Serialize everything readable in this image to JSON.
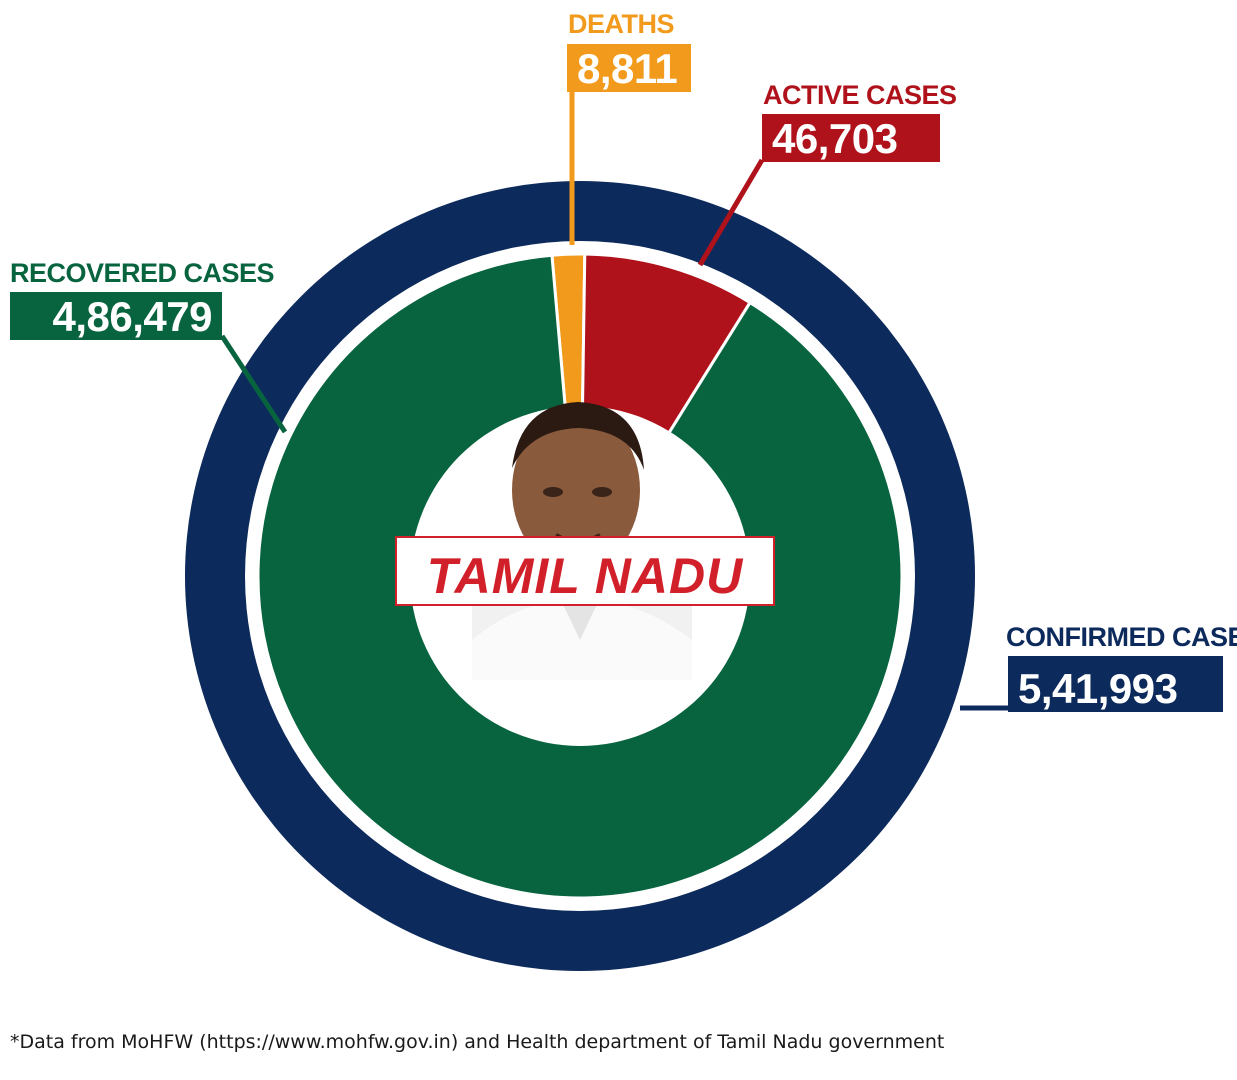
{
  "chart_data": {
    "type": "pie",
    "title": "",
    "state": "TAMIL NADU",
    "outer_ring": {
      "name": "CONFIRMED CASES",
      "value": 541993,
      "value_label": "5,41,993",
      "color": "#0d2a5c"
    },
    "slices": [
      {
        "name": "RECOVERED CASES",
        "value": 486479,
        "value_label": "4,86,479",
        "color": "#07643f"
      },
      {
        "name": "ACTIVE CASES",
        "value": 46703,
        "value_label": "46,703",
        "color": "#b0121b"
      },
      {
        "name": "DEATHS",
        "value": 8811,
        "value_label": "8,811",
        "color": "#f29a1b"
      }
    ]
  },
  "footnote": "*Data from MoHFW (https://www.mohfw.gov.in) and Health department of Tamil Nadu government"
}
